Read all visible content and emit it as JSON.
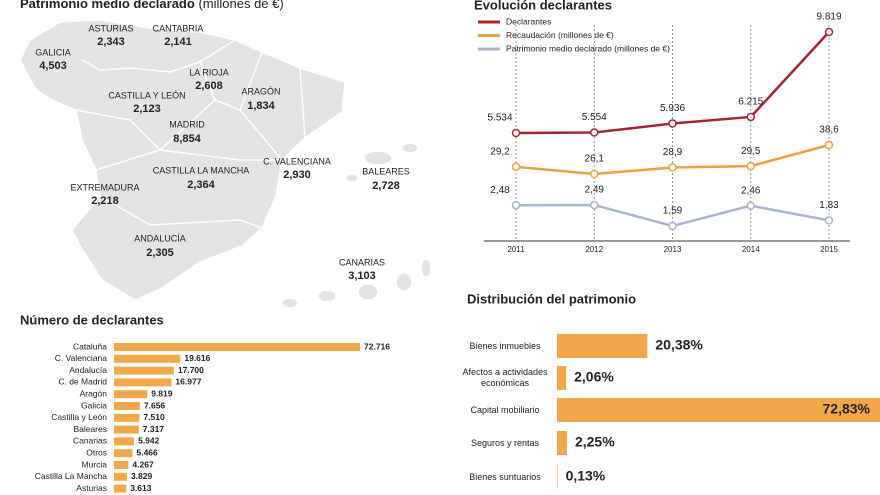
{
  "map": {
    "title": "Patrimonio medio declarado",
    "title_note": "(millones de €)",
    "regions": [
      {
        "name": "ASTURIAS",
        "value": "2,343"
      },
      {
        "name": "CANTABRIA",
        "value": "2,141"
      },
      {
        "name": "GALICIA",
        "value": "4,503"
      },
      {
        "name": "LA RIOJA",
        "value": "2,608"
      },
      {
        "name": "CASTILLA Y LEÓN",
        "value": "2,123"
      },
      {
        "name": "ARAGÓN",
        "value": "1,834"
      },
      {
        "name": "MADRID",
        "value": "8,854"
      },
      {
        "name": "C. VALENCIANA",
        "value": "2,930"
      },
      {
        "name": "BALEARES",
        "value": "2,728"
      },
      {
        "name": "CASTILLA LA MANCHA",
        "value": "2,364"
      },
      {
        "name": "EXTREMADURA",
        "value": "2,218"
      },
      {
        "name": "ANDALUCÍA",
        "value": "2,305"
      },
      {
        "name": "CANARIAS",
        "value": "3,103"
      }
    ]
  },
  "chart_data": [
    {
      "type": "line",
      "title": "Evolución declarantes",
      "x": [
        2011,
        2012,
        2013,
        2014,
        2015
      ],
      "series": [
        {
          "name": "Declarantes",
          "color": "#a6262b",
          "values": [
            5534,
            5554,
            5936,
            6215,
            9819
          ],
          "value_labels": [
            "5.534",
            "5.554",
            "5.936",
            "6.215",
            "9.819"
          ]
        },
        {
          "name": "Recaudación (millones de €)",
          "color": "#f0a040",
          "values": [
            29.2,
            26.1,
            28.9,
            29.5,
            38.6
          ],
          "value_labels": [
            "29,2",
            "26,1",
            "28,9",
            "29,5",
            "38,6"
          ]
        },
        {
          "name": "Patrimonio medio declarado (millones de €)",
          "color": "#a9b4d4",
          "values": [
            2.48,
            2.49,
            1.59,
            2.46,
            1.83
          ],
          "value_labels": [
            "2,48",
            "2,49",
            "1,59",
            "2,46",
            "1,83"
          ]
        }
      ]
    },
    {
      "type": "bar",
      "title": "Número de declarantes",
      "color": "#f2a84a",
      "categories": [
        "Cataluña",
        "C. Valenciana",
        "Andalucía",
        "C. de Madrid",
        "Aragón",
        "Galicia",
        "Castilla y León",
        "Baleares",
        "Canarias",
        "Otros",
        "Murcia",
        "Castilla La Mancha",
        "Asturias"
      ],
      "values": [
        72716,
        19616,
        17700,
        16977,
        9819,
        7656,
        7510,
        7317,
        5942,
        5466,
        4267,
        3829,
        3613
      ],
      "value_labels": [
        "72.716",
        "19.616",
        "17.700",
        "16.977",
        "9.819",
        "7.656",
        "7.510",
        "7.317",
        "5.942",
        "5.466",
        "4.267",
        "3.829",
        "3.613"
      ]
    },
    {
      "type": "bar",
      "title": "Distribución del patrimonio",
      "color": "#f2a84a",
      "categories": [
        "Bienes inmuebles",
        "Afectos a actividades económicas",
        "Capital mobiliario",
        "Seguros y rentas",
        "Bienes suntuarios"
      ],
      "values": [
        20.38,
        2.06,
        72.83,
        2.25,
        0.13
      ],
      "value_labels": [
        "20,38%",
        "2,06%",
        "72,83%",
        "2,25%",
        "0,13%"
      ]
    }
  ]
}
